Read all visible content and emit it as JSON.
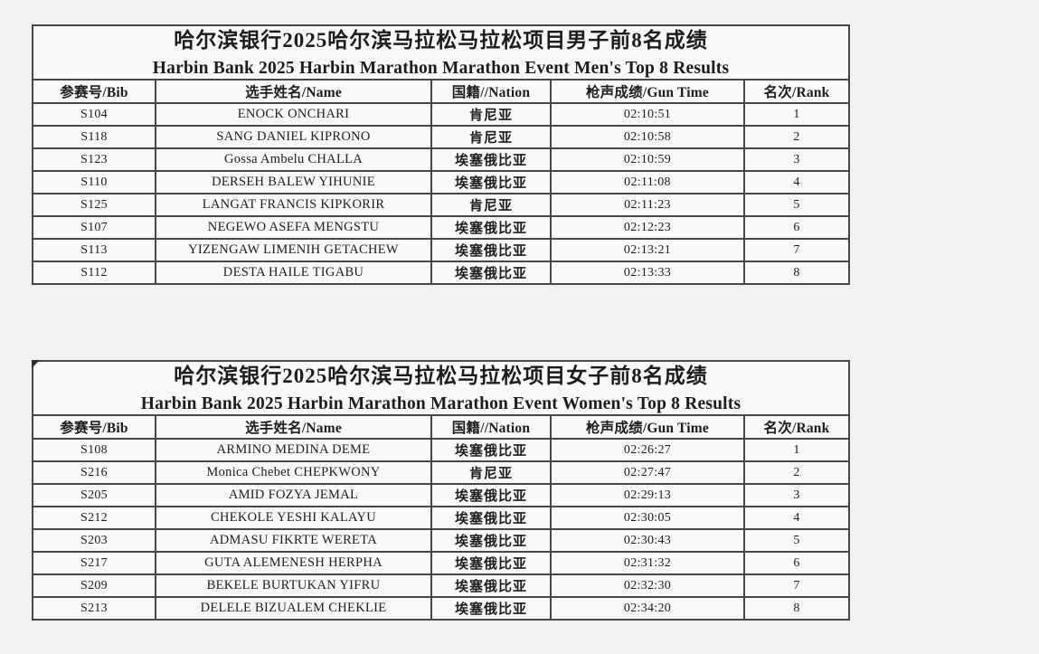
{
  "page": {
    "background_color": "#f1f2f0",
    "table_background_color": "#f9f9f7",
    "border_color": "#474747",
    "text_color": "#1c1c1c"
  },
  "tables": [
    {
      "id": "men",
      "title_zh": "哈尔滨银行2025哈尔滨马拉松马拉松项目男子前8名成绩",
      "title_en": "Harbin Bank 2025 Harbin Marathon Marathon Event Men's Top 8 Results",
      "columns": [
        "参赛号/Bib",
        "选手姓名/Name",
        "国籍//Nation",
        "枪声成绩/Gun Time",
        "名次/Rank"
      ],
      "rows": [
        [
          "S104",
          "ENOCK ONCHARI",
          "肯尼亚",
          "02:10:51",
          "1"
        ],
        [
          "S118",
          "SANG DANIEL KIPRONO",
          "肯尼亚",
          "02:10:58",
          "2"
        ],
        [
          "S123",
          "Gossa Ambelu CHALLA",
          "埃塞俄比亚",
          "02:10:59",
          "3"
        ],
        [
          "S110",
          "DERSEH BALEW YIHUNIE",
          "埃塞俄比亚",
          "02:11:08",
          "4"
        ],
        [
          "S125",
          "LANGAT FRANCIS KIPKORIR",
          "肯尼亚",
          "02:11:23",
          "5"
        ],
        [
          "S107",
          "NEGEWO ASEFA MENGSTU",
          "埃塞俄比亚",
          "02:12:23",
          "6"
        ],
        [
          "S113",
          "YIZENGAW LIMENIH GETACHEW",
          "埃塞俄比亚",
          "02:13:21",
          "7"
        ],
        [
          "S112",
          "DESTA HAILE TIGABU",
          "埃塞俄比亚",
          "02:13:33",
          "8"
        ]
      ]
    },
    {
      "id": "women",
      "title_zh": "哈尔滨银行2025哈尔滨马拉松马拉松项目女子前8名成绩",
      "title_en": "Harbin Bank 2025 Harbin Marathon Marathon Event Women's Top 8 Results",
      "columns": [
        "参赛号/Bib",
        "选手姓名/Name",
        "国籍//Nation",
        "枪声成绩/Gun Time",
        "名次/Rank"
      ],
      "rows": [
        [
          "S108",
          "ARMINO MEDINA DEME",
          "埃塞俄比亚",
          "02:26:27",
          "1"
        ],
        [
          "S216",
          "Monica Chebet CHEPKWONY",
          "肯尼亚",
          "02:27:47",
          "2"
        ],
        [
          "S205",
          "AMID FOZYA JEMAL",
          "埃塞俄比亚",
          "02:29:13",
          "3"
        ],
        [
          "S212",
          "CHEKOLE YESHI KALAYU",
          "埃塞俄比亚",
          "02:30:05",
          "4"
        ],
        [
          "S203",
          "ADMASU FIKRTE WERETA",
          "埃塞俄比亚",
          "02:30:43",
          "5"
        ],
        [
          "S217",
          "GUTA ALEMENESH HERPHA",
          "埃塞俄比亚",
          "02:31:32",
          "6"
        ],
        [
          "S209",
          "BEKELE BURTUKAN YIFRU",
          "埃塞俄比亚",
          "02:32:30",
          "7"
        ],
        [
          "S213",
          "DELELE BIZUALEM CHEKLIE",
          "埃塞俄比亚",
          "02:34:20",
          "8"
        ]
      ]
    }
  ]
}
